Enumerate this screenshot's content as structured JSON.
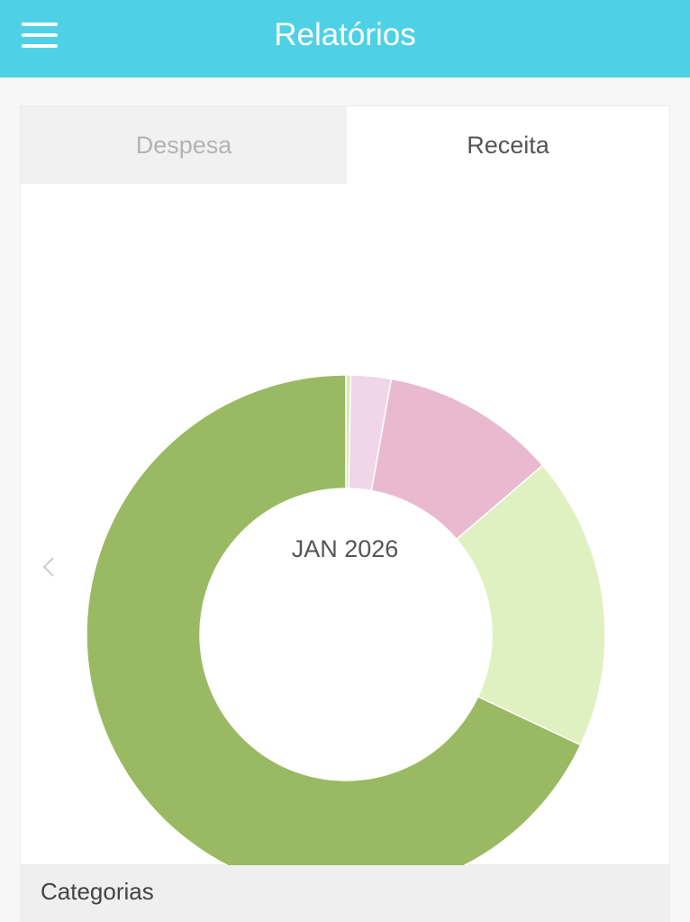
{
  "app_bar": {
    "title": "Relatórios",
    "menu_icon": "hamburger-menu-icon",
    "background_color": "#4fd1e5"
  },
  "tabs": [
    {
      "label": "Despesa",
      "active": false
    },
    {
      "label": "Receita",
      "active": true
    }
  ],
  "chart": {
    "period_label": "JAN 2026",
    "prev_icon": "chevron-left-icon"
  },
  "chart_data": {
    "type": "pie",
    "donut": true,
    "slices": [
      {
        "value": 0.3,
        "color": "#d8e9b8"
      },
      {
        "value": 2.5,
        "color": "#f0d6e8"
      },
      {
        "value": 10.9,
        "color": "#e9b9d0"
      },
      {
        "value": 18.3,
        "color": "#dff1c1"
      },
      {
        "value": 68.0,
        "color": "#99ba62"
      }
    ]
  },
  "categories": {
    "label": "Categorias"
  }
}
